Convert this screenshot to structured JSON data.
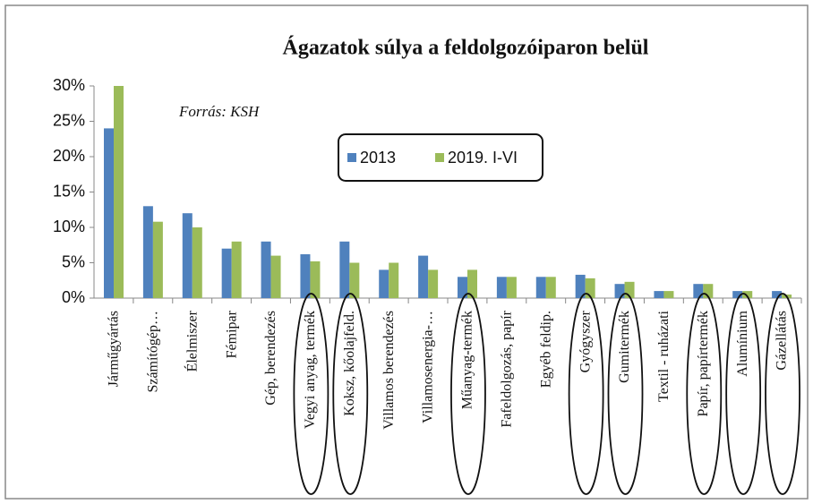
{
  "chart_data": {
    "type": "bar",
    "title": "Ágazatok súlya a feldolgozóiparon belül",
    "annotation": "Forrás: KSH",
    "categories": [
      "Járműgyártás",
      "Számítógép…",
      "Élelmiszer",
      "Fémipar",
      "Gép, berendezés",
      "Vegyi anyag, termék",
      "Koksz, kőolajfeld.",
      "Villamos berendezés",
      "Villamosenergia-…",
      "Műanyag-termék",
      "Fafeldolgozás, papír",
      "Egyéb feldip.",
      "Gyógyszer",
      "Gumitermék",
      "Textil - ruházati",
      "Papír, papírtermék",
      "Alumínium",
      "Gázellátás"
    ],
    "series": [
      {
        "name": "2013",
        "color": "#4f81bd",
        "values": [
          24,
          13,
          12,
          7,
          8,
          6.2,
          8,
          4,
          6,
          3,
          3,
          3,
          3.3,
          2,
          1,
          2,
          1,
          1
        ]
      },
      {
        "name": "2019. I-VI",
        "color": "#9bbb59",
        "values": [
          30,
          10.8,
          10,
          8,
          6,
          5.2,
          5,
          5,
          4,
          4,
          3,
          3,
          2.8,
          2.3,
          1,
          2,
          1,
          0.5
        ]
      }
    ],
    "ylim": [
      0,
      30
    ],
    "yticks": [
      {
        "value": 0,
        "label": "0%"
      },
      {
        "value": 5,
        "label": "5%"
      },
      {
        "value": 10,
        "label": "10%"
      },
      {
        "value": 15,
        "label": "15%"
      },
      {
        "value": 20,
        "label": "20%"
      },
      {
        "value": 25,
        "label": "25%"
      },
      {
        "value": 30,
        "label": "30%"
      }
    ],
    "highlight": [
      5,
      6,
      9,
      12,
      13,
      15,
      16,
      17
    ]
  }
}
